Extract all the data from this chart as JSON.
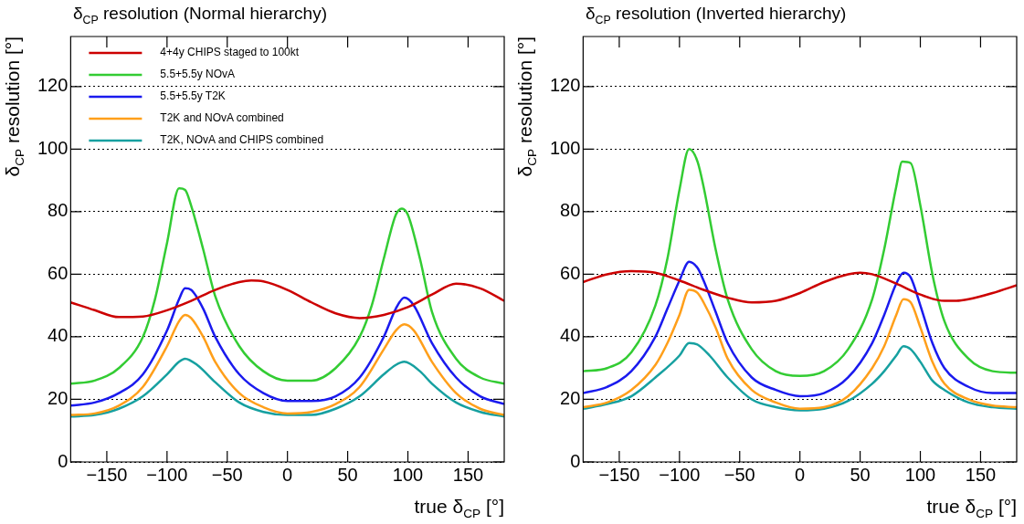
{
  "chart_data": [
    {
      "type": "line",
      "title": "δ$_{CP}$ resolution (Normal hierarchy)",
      "xlabel": "true δ$_{CP}$ [°]",
      "ylabel": "δ$_{CP}$ resolution [°]",
      "xlim": [
        -180,
        180
      ],
      "xticks": [
        {
          "value": -150,
          "label": "−150"
        },
        {
          "value": -100,
          "label": "−100"
        },
        {
          "value": -50,
          "label": "−50"
        },
        0,
        50,
        100,
        150
      ],
      "ylim": [
        0,
        136
      ],
      "yticks": [
        0,
        20,
        40,
        60,
        80,
        100,
        120
      ],
      "grid": "y",
      "legend": "top left",
      "marker": "none",
      "line_style": "solid",
      "series": [
        {
          "name": "4+4y CHIPS staged to 100kt",
          "color": "#cc0000",
          "x": [
            -180,
            -160,
            -140,
            -120,
            -100,
            -80,
            -60,
            -40,
            -30,
            -20,
            0,
            20,
            40,
            60,
            80,
            100,
            120,
            140,
            160,
            180
          ],
          "values": [
            51,
            48.5,
            46.3,
            46.5,
            48.5,
            51.5,
            55,
            57.5,
            58,
            57.7,
            55,
            51,
            47.5,
            46,
            47,
            49.5,
            53.5,
            57,
            55.5,
            51.5
          ]
        },
        {
          "name": "5.5+5.5y NOvA",
          "color": "#33cc33",
          "x": [
            -180,
            -160,
            -140,
            -120,
            -110,
            -100,
            -90,
            -85,
            -80,
            -70,
            -60,
            -40,
            -20,
            0,
            20,
            40,
            60,
            70,
            80,
            90,
            95,
            100,
            110,
            120,
            140,
            160,
            180
          ],
          "values": [
            25,
            26,
            30,
            40,
            52,
            70,
            87.5,
            87,
            82,
            68,
            53,
            37,
            29,
            26,
            26,
            30,
            40,
            50,
            65,
            79,
            81,
            79,
            65,
            48,
            33,
            27,
            25
          ]
        },
        {
          "name": "5.5+5.5y T2K",
          "color": "#1a1aee",
          "x": [
            -180,
            -160,
            -140,
            -120,
            -100,
            -90,
            -85,
            -80,
            -70,
            -60,
            -40,
            -20,
            0,
            20,
            40,
            60,
            80,
            90,
            97,
            105,
            120,
            140,
            160,
            180
          ],
          "values": [
            18,
            19,
            22,
            28,
            42,
            52,
            55.5,
            55,
            49,
            40,
            28,
            22,
            19.5,
            19.5,
            21,
            27,
            40,
            49,
            52.5,
            50,
            38,
            27,
            21,
            18.5
          ]
        },
        {
          "name": "T2K and NOvA combined",
          "color": "#ff9f1a",
          "x": [
            -180,
            -160,
            -140,
            -120,
            -100,
            -90,
            -85,
            -80,
            -70,
            -60,
            -40,
            -20,
            0,
            20,
            40,
            60,
            80,
            90,
            97,
            105,
            120,
            140,
            160,
            180
          ],
          "values": [
            15,
            15.5,
            18,
            24,
            37,
            45,
            47,
            46,
            40,
            32,
            22,
            17.5,
            15.5,
            16,
            18.5,
            24,
            36,
            42,
            44,
            42,
            32,
            22,
            17,
            15
          ]
        },
        {
          "name": "T2K, NOvA and CHIPS combined",
          "color": "#16a0a0",
          "x": [
            -180,
            -160,
            -140,
            -120,
            -100,
            -90,
            -85,
            -75,
            -60,
            -40,
            -20,
            0,
            20,
            40,
            60,
            80,
            90,
            97,
            110,
            120,
            140,
            160,
            180
          ],
          "values": [
            14.5,
            15,
            17,
            21,
            28,
            32,
            33,
            31,
            25.5,
            19,
            16,
            15,
            15,
            17,
            21,
            28,
            31,
            32,
            29,
            25,
            19,
            16,
            14.5
          ]
        }
      ]
    },
    {
      "type": "line",
      "title": "δ$_{CP}$ resolution (Inverted hierarchy)",
      "xlabel": "true δ$_{CP}$ [°]",
      "ylabel": "δ$_{CP}$ resolution [°]",
      "xlim": [
        -180,
        180
      ],
      "xticks": [
        {
          "value": -150,
          "label": "−150"
        },
        {
          "value": -100,
          "label": "−100"
        },
        {
          "value": -50,
          "label": "−50"
        },
        0,
        50,
        100,
        150
      ],
      "ylim": [
        0,
        136
      ],
      "yticks": [
        0,
        20,
        40,
        60,
        80,
        100,
        120
      ],
      "grid": "y",
      "marker": "none",
      "line_style": "solid",
      "series": [
        {
          "color": "#cc0000",
          "x": [
            -180,
            -160,
            -140,
            -120,
            -100,
            -80,
            -60,
            -40,
            -20,
            0,
            20,
            40,
            50,
            60,
            80,
            100,
            120,
            130,
            140,
            160,
            180
          ],
          "values": [
            57.5,
            60,
            61,
            60.5,
            58,
            55,
            52.5,
            51,
            51.5,
            54,
            57.5,
            60,
            60.5,
            60,
            57,
            53.5,
            51.5,
            51.5,
            52,
            54,
            56.5
          ]
        },
        {
          "color": "#33cc33",
          "x": [
            -180,
            -160,
            -140,
            -120,
            -110,
            -100,
            -92,
            -85,
            -80,
            -70,
            -60,
            -40,
            -20,
            0,
            20,
            40,
            60,
            70,
            80,
            85,
            92,
            100,
            110,
            120,
            140,
            160,
            180
          ],
          "values": [
            29,
            30,
            35,
            50,
            65,
            87,
            100,
            96,
            88,
            68,
            52,
            36,
            29,
            27.5,
            29,
            36,
            52,
            68,
            88,
            96,
            95.5,
            82,
            60,
            45,
            33,
            29,
            28.5
          ]
        },
        {
          "color": "#1a1aee",
          "x": [
            -180,
            -160,
            -140,
            -120,
            -110,
            -100,
            -92,
            -85,
            -80,
            -70,
            -60,
            -40,
            -20,
            0,
            20,
            40,
            60,
            70,
            80,
            86,
            92,
            100,
            110,
            120,
            140,
            160,
            180
          ],
          "values": [
            22,
            24,
            29,
            40,
            49,
            58,
            64,
            62,
            58,
            48,
            38,
            27,
            23,
            21,
            22,
            27,
            38,
            47,
            57,
            60.5,
            59,
            50,
            38,
            30,
            24,
            22,
            22
          ]
        },
        {
          "color": "#ff9f1a",
          "x": [
            -180,
            -160,
            -140,
            -120,
            -110,
            -100,
            -92,
            -85,
            -80,
            -70,
            -60,
            -40,
            -20,
            0,
            20,
            40,
            60,
            70,
            80,
            86,
            92,
            100,
            110,
            120,
            140,
            160,
            180
          ],
          "values": [
            17.5,
            19,
            23,
            31,
            38,
            47,
            55,
            54,
            51,
            43,
            33,
            23,
            19,
            17,
            17.5,
            21,
            30,
            37,
            47,
            52,
            51,
            43,
            32,
            25,
            20,
            18,
            17.5
          ]
        },
        {
          "color": "#16a0a0",
          "x": [
            -180,
            -160,
            -140,
            -120,
            -100,
            -92,
            -85,
            -75,
            -60,
            -40,
            -20,
            0,
            20,
            40,
            60,
            70,
            80,
            86,
            92,
            100,
            110,
            120,
            140,
            160,
            180
          ],
          "values": [
            17,
            18.5,
            21,
            27,
            34,
            38,
            37.5,
            34,
            27,
            20,
            17.5,
            16.5,
            17,
            19.5,
            25,
            29,
            34,
            37,
            36,
            32,
            26,
            23,
            19,
            17.5,
            17
          ]
        }
      ]
    }
  ]
}
